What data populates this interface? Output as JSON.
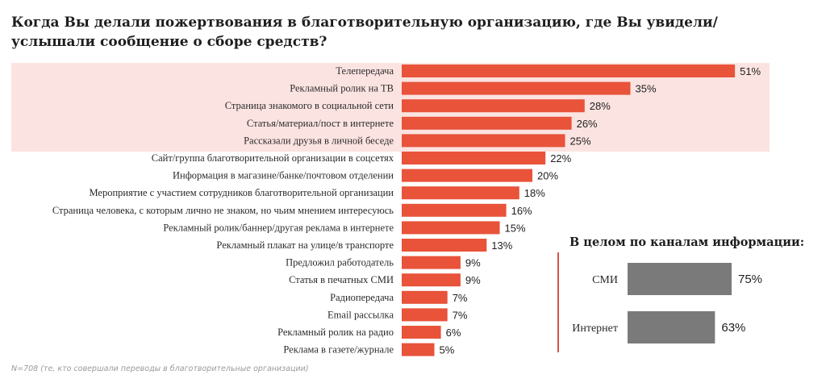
{
  "title": "Когда Вы делали пожертвования в благотворительную организацию, где Вы увидели/услышали сообщение о сборе средств?",
  "footnote": "N=708 (те, кто совершали переводы в благотворительные организации)",
  "colors": {
    "bar": "#e8533a",
    "highlight": "#fbe3e1",
    "inset_bar": "#7a7a7a"
  },
  "chart_data": [
    {
      "type": "bar",
      "orientation": "horizontal",
      "highlighted_top_n": 5,
      "categories": [
        "Телепередача",
        "Рекламный ролик на ТВ",
        "Страница знакомого в социальной сети",
        "Статья/материал/пост в интернете",
        "Рассказали друзья в личной беседе",
        "Сайт/группа благотворительной организации в соцсетях",
        "Информация в магазине/банке/почтовом отделении",
        "Мероприятие с участием сотрудников благотворительной организации",
        "Страница человека, с которым лично не знаком, но чьим мнением интересуюсь",
        "Рекламный ролик/баннер/другая реклама в интернете",
        "Рекламный плакат на улице/в транспорте",
        "Предложил работодатель",
        "Статья в печатных СМИ",
        "Радиопередача",
        "Email рассылка",
        "Рекламный ролик на радио",
        "Реклама в газете/журнале"
      ],
      "values": [
        51,
        35,
        28,
        26,
        25,
        22,
        20,
        18,
        16,
        15,
        13,
        9,
        9,
        7,
        7,
        6,
        5
      ],
      "value_labels": [
        "51%",
        "35%",
        "28%",
        "26%",
        "25%",
        "22%",
        "20%",
        "18%",
        "16%",
        "15%",
        "13%",
        "9%",
        "9%",
        "7%",
        "7%",
        "6%",
        "5%"
      ]
    },
    {
      "type": "bar",
      "orientation": "horizontal",
      "title": "В целом по каналам информации:",
      "categories": [
        "СМИ",
        "Интернет"
      ],
      "values": [
        75,
        63
      ],
      "value_labels": [
        "75%",
        "63%"
      ]
    }
  ]
}
